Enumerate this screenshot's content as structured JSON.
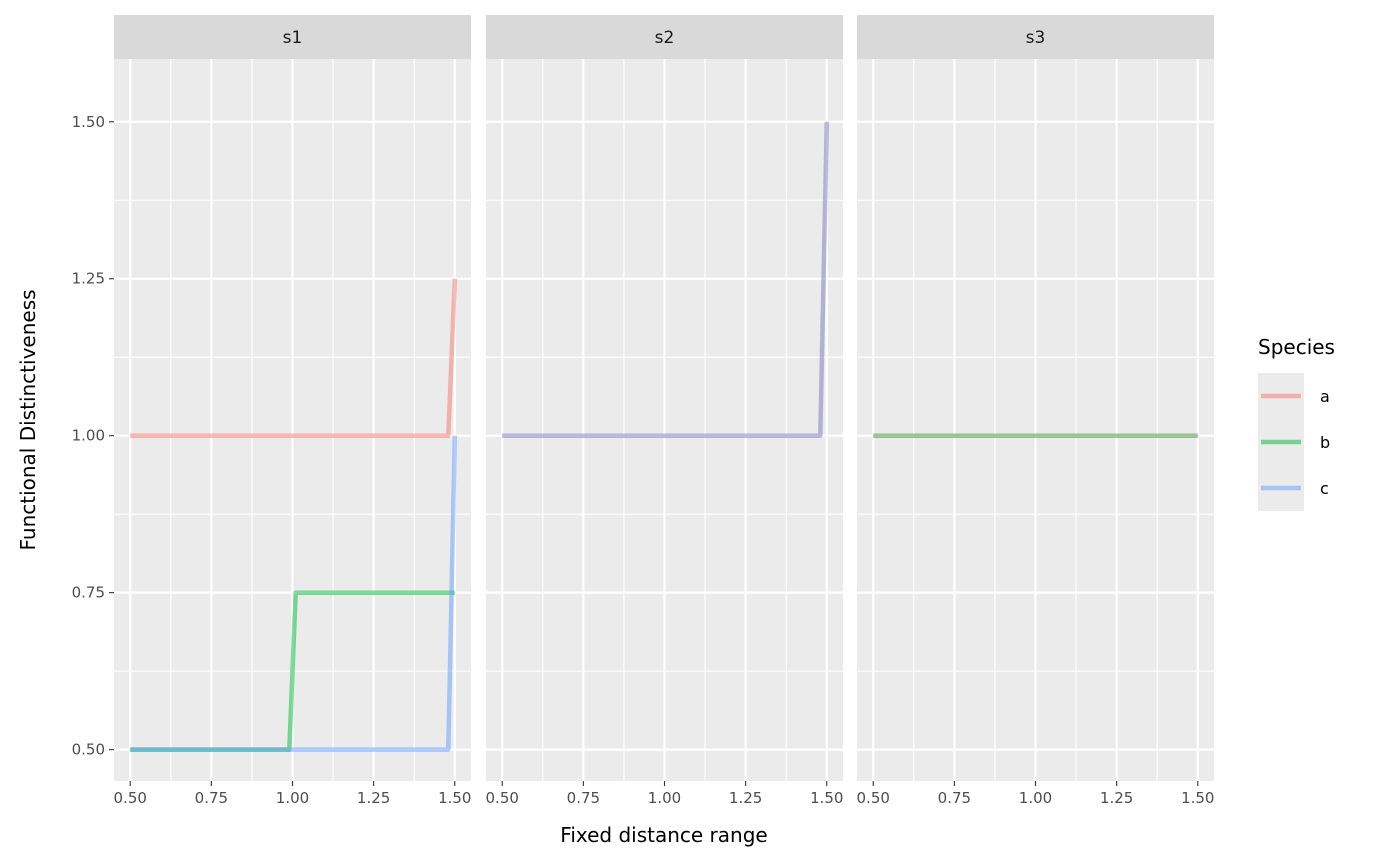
{
  "chart_data": {
    "type": "line",
    "xlabel": "Fixed distance range",
    "ylabel": "Functional Distinctiveness",
    "xlim": [
      0.45,
      1.55
    ],
    "ylim": [
      0.45,
      1.6
    ],
    "x_ticks": [
      "0.50",
      "0.75",
      "1.00",
      "1.25",
      "1.50"
    ],
    "y_ticks": [
      "0.50",
      "0.75",
      "1.00",
      "1.25",
      "1.50"
    ],
    "grid": true,
    "legend": {
      "title": "Species",
      "placement": "right",
      "entries": [
        {
          "label": "a",
          "color": "#F8766D"
        },
        {
          "label": "b",
          "color": "#00BA38"
        },
        {
          "label": "c",
          "color": "#619CFF"
        }
      ]
    },
    "panels": [
      {
        "label": "s1",
        "series": [
          {
            "name": "a",
            "color": "#F8766D",
            "points": [
              [
                0.5,
                1.0
              ],
              [
                1.48,
                1.0
              ],
              [
                1.5,
                1.25
              ]
            ]
          },
          {
            "name": "b",
            "color": "#00BA38",
            "points": [
              [
                0.5,
                0.5
              ],
              [
                0.99,
                0.5
              ],
              [
                1.01,
                0.75
              ],
              [
                1.5,
                0.75
              ]
            ]
          },
          {
            "name": "c",
            "color": "#619CFF",
            "points": [
              [
                0.5,
                0.5
              ],
              [
                1.48,
                0.5
              ],
              [
                1.5,
                1.0
              ]
            ]
          }
        ]
      },
      {
        "label": "s2",
        "series": [
          {
            "name": "",
            "color": "#7B75C2",
            "points": [
              [
                0.5,
                1.0
              ],
              [
                1.48,
                1.0
              ],
              [
                1.5,
                1.5
              ]
            ]
          }
        ]
      },
      {
        "label": "s3",
        "series": [
          {
            "name": "",
            "color": "#3F8F35",
            "points": [
              [
                0.5,
                1.0
              ],
              [
                1.5,
                1.0
              ]
            ]
          }
        ]
      }
    ]
  }
}
